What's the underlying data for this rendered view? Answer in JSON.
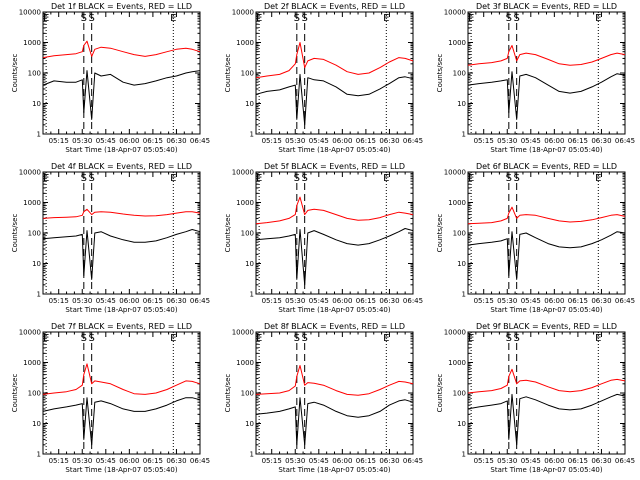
{
  "figure": {
    "background": "#ffffff",
    "axis_color": "#000000"
  },
  "chart_data": {
    "type": "line",
    "layout": "3x3 grid of panels",
    "y_scale": "log",
    "ylim": [
      1,
      10000
    ],
    "xlim": [
      "05:05",
      "06:45"
    ],
    "ylabel": "Counts/sec",
    "xlabel": "Start Time (18-Apr-07 05:05:40)",
    "y_ticks": [
      "1",
      "10",
      "100",
      "1000",
      "10000"
    ],
    "x_ticks": [
      "05:15",
      "05:30",
      "05:45",
      "06:00",
      "06:15",
      "06:30",
      "06:45"
    ],
    "x_minor_per_major": 3,
    "series_style": [
      {
        "id": "events",
        "color": "#000000"
      },
      {
        "id": "lld",
        "color": "#ff0000"
      }
    ],
    "markers": [
      {
        "label": "E",
        "time": "05:07",
        "line": "dotted"
      },
      {
        "label": "S",
        "time": "05:31",
        "line": "dashed"
      },
      {
        "label": "S",
        "time": "05:36",
        "line": "dashed"
      },
      {
        "label": "E",
        "time": "06:28",
        "line": "dotted"
      }
    ],
    "panels": [
      {
        "title": "Det 1f BLACK = Events, RED = LLD",
        "events": {
          "time": [
            "05:05",
            "05:12",
            "05:20",
            "05:26",
            "05:30",
            "05:31",
            "05:33",
            "05:36",
            "05:38",
            "05:42",
            "05:48",
            "05:56",
            "06:03",
            "06:10",
            "06:17",
            "06:24",
            "06:30",
            "06:36",
            "06:40",
            "06:45"
          ],
          "value": [
            40,
            55,
            50,
            50,
            60,
            5,
            120,
            3,
            100,
            80,
            90,
            50,
            40,
            45,
            55,
            70,
            80,
            100,
            110,
            120
          ]
        },
        "lld": {
          "time": [
            "05:05",
            "05:12",
            "05:20",
            "05:26",
            "05:30",
            "05:31",
            "05:33",
            "05:36",
            "05:38",
            "05:42",
            "05:48",
            "05:56",
            "06:03",
            "06:10",
            "06:17",
            "06:24",
            "06:30",
            "06:36",
            "06:40",
            "06:45"
          ],
          "value": [
            320,
            370,
            400,
            430,
            500,
            800,
            1100,
            350,
            600,
            700,
            650,
            500,
            400,
            350,
            400,
            500,
            600,
            650,
            600,
            500
          ]
        }
      },
      {
        "title": "Det 2f BLACK = Events, RED = LLD",
        "events": {
          "time": [
            "05:05",
            "05:12",
            "05:20",
            "05:26",
            "05:30",
            "05:31",
            "05:33",
            "05:36",
            "05:38",
            "05:42",
            "05:48",
            "05:56",
            "06:03",
            "06:10",
            "06:17",
            "06:24",
            "06:30",
            "06:36",
            "06:40",
            "06:45"
          ],
          "value": [
            20,
            25,
            28,
            35,
            40,
            3,
            90,
            2,
            70,
            60,
            55,
            35,
            20,
            18,
            20,
            30,
            45,
            70,
            75,
            65
          ]
        },
        "lld": {
          "time": [
            "05:05",
            "05:12",
            "05:20",
            "05:26",
            "05:30",
            "05:31",
            "05:33",
            "05:36",
            "05:38",
            "05:42",
            "05:48",
            "05:56",
            "06:03",
            "06:10",
            "06:17",
            "06:24",
            "06:30",
            "06:36",
            "06:40",
            "06:45"
          ],
          "value": [
            70,
            80,
            90,
            120,
            200,
            400,
            1000,
            150,
            250,
            300,
            280,
            180,
            110,
            90,
            100,
            150,
            230,
            320,
            300,
            250
          ]
        }
      },
      {
        "title": "Det 3f BLACK = Events, RED = LLD",
        "events": {
          "time": [
            "05:05",
            "05:12",
            "05:20",
            "05:26",
            "05:30",
            "05:31",
            "05:33",
            "05:36",
            "05:38",
            "05:42",
            "05:48",
            "05:56",
            "06:03",
            "06:10",
            "06:17",
            "06:24",
            "06:30",
            "06:36",
            "06:40",
            "06:45"
          ],
          "value": [
            40,
            45,
            50,
            55,
            60,
            5,
            110,
            3,
            80,
            90,
            70,
            40,
            25,
            22,
            25,
            35,
            50,
            75,
            95,
            85
          ]
        },
        "lld": {
          "time": [
            "05:05",
            "05:12",
            "05:20",
            "05:26",
            "05:30",
            "05:31",
            "05:33",
            "05:36",
            "05:38",
            "05:42",
            "05:48",
            "05:56",
            "06:03",
            "06:10",
            "06:17",
            "06:24",
            "06:30",
            "06:36",
            "06:40",
            "06:45"
          ],
          "value": [
            180,
            200,
            220,
            250,
            300,
            500,
            800,
            250,
            400,
            450,
            400,
            280,
            200,
            180,
            190,
            230,
            300,
            400,
            450,
            400
          ]
        }
      },
      {
        "title": "Det 4f BLACK = Events, RED = LLD",
        "events": {
          "time": [
            "05:05",
            "05:12",
            "05:20",
            "05:26",
            "05:30",
            "05:31",
            "05:33",
            "05:36",
            "05:38",
            "05:42",
            "05:48",
            "05:56",
            "06:03",
            "06:10",
            "06:17",
            "06:24",
            "06:30",
            "06:36",
            "06:40",
            "06:45"
          ],
          "value": [
            65,
            70,
            75,
            80,
            90,
            4,
            120,
            3,
            100,
            110,
            80,
            60,
            50,
            50,
            55,
            70,
            90,
            110,
            130,
            110
          ]
        },
        "lld": {
          "time": [
            "05:05",
            "05:12",
            "05:20",
            "05:26",
            "05:30",
            "05:31",
            "05:33",
            "05:36",
            "05:38",
            "05:42",
            "05:48",
            "05:56",
            "06:03",
            "06:10",
            "06:17",
            "06:24",
            "06:30",
            "06:36",
            "06:40",
            "06:45"
          ],
          "value": [
            300,
            320,
            330,
            340,
            380,
            500,
            600,
            400,
            480,
            500,
            480,
            420,
            380,
            360,
            370,
            400,
            450,
            500,
            500,
            450
          ]
        }
      },
      {
        "title": "Det 5f BLACK = Events, RED = LLD",
        "events": {
          "time": [
            "05:05",
            "05:12",
            "05:20",
            "05:26",
            "05:30",
            "05:31",
            "05:33",
            "05:36",
            "05:38",
            "05:42",
            "05:48",
            "05:56",
            "06:03",
            "06:10",
            "06:17",
            "06:24",
            "06:30",
            "06:36",
            "06:40",
            "06:45"
          ],
          "value": [
            60,
            65,
            70,
            80,
            90,
            3,
            130,
            2,
            100,
            120,
            90,
            60,
            45,
            40,
            45,
            60,
            80,
            110,
            140,
            120
          ]
        },
        "lld": {
          "time": [
            "05:05",
            "05:12",
            "05:20",
            "05:26",
            "05:30",
            "05:31",
            "05:33",
            "05:36",
            "05:38",
            "05:42",
            "05:48",
            "05:56",
            "06:03",
            "06:10",
            "06:17",
            "06:24",
            "06:30",
            "06:36",
            "06:40",
            "06:45"
          ],
          "value": [
            200,
            220,
            250,
            300,
            400,
            800,
            1500,
            400,
            550,
            600,
            550,
            400,
            300,
            260,
            270,
            320,
            400,
            480,
            450,
            400
          ]
        }
      },
      {
        "title": "Det 6f BLACK = Events, RED = LLD",
        "events": {
          "time": [
            "05:05",
            "05:12",
            "05:20",
            "05:26",
            "05:30",
            "05:31",
            "05:33",
            "05:36",
            "05:38",
            "05:42",
            "05:48",
            "05:56",
            "06:03",
            "06:10",
            "06:17",
            "06:24",
            "06:30",
            "06:36",
            "06:40",
            "06:45"
          ],
          "value": [
            40,
            45,
            50,
            55,
            65,
            4,
            110,
            3,
            90,
            100,
            70,
            45,
            35,
            33,
            35,
            45,
            60,
            85,
            110,
            100
          ]
        },
        "lld": {
          "time": [
            "05:05",
            "05:12",
            "05:20",
            "05:26",
            "05:30",
            "05:31",
            "05:33",
            "05:36",
            "05:38",
            "05:42",
            "05:48",
            "05:56",
            "06:03",
            "06:10",
            "06:17",
            "06:24",
            "06:30",
            "06:36",
            "06:40",
            "06:45"
          ],
          "value": [
            200,
            210,
            220,
            250,
            300,
            450,
            700,
            300,
            380,
            400,
            380,
            300,
            250,
            230,
            240,
            270,
            320,
            380,
            400,
            350
          ]
        }
      },
      {
        "title": "Det 7f BLACK = Events, RED = LLD",
        "events": {
          "time": [
            "05:05",
            "05:12",
            "05:20",
            "05:26",
            "05:30",
            "05:31",
            "05:33",
            "05:36",
            "05:38",
            "05:42",
            "05:48",
            "05:56",
            "06:03",
            "06:10",
            "06:17",
            "06:24",
            "06:30",
            "06:36",
            "06:40",
            "06:45"
          ],
          "value": [
            25,
            30,
            35,
            40,
            45,
            3,
            70,
            2,
            50,
            55,
            45,
            30,
            25,
            25,
            30,
            40,
            55,
            70,
            70,
            60
          ]
        },
        "lld": {
          "time": [
            "05:05",
            "05:12",
            "05:20",
            "05:26",
            "05:30",
            "05:31",
            "05:33",
            "05:36",
            "05:38",
            "05:42",
            "05:48",
            "05:56",
            "06:03",
            "06:10",
            "06:17",
            "06:24",
            "06:30",
            "06:36",
            "06:40",
            "06:45"
          ],
          "value": [
            90,
            100,
            110,
            130,
            180,
            400,
            900,
            200,
            250,
            230,
            200,
            130,
            95,
            90,
            100,
            130,
            180,
            250,
            240,
            200
          ]
        }
      },
      {
        "title": "Det 8f BLACK = Events, RED = LLD",
        "events": {
          "time": [
            "05:05",
            "05:12",
            "05:20",
            "05:26",
            "05:30",
            "05:31",
            "05:33",
            "05:36",
            "05:38",
            "05:42",
            "05:48",
            "05:56",
            "06:03",
            "06:10",
            "06:17",
            "06:24",
            "06:30",
            "06:36",
            "06:40",
            "06:45"
          ],
          "value": [
            20,
            22,
            25,
            30,
            35,
            2,
            70,
            2,
            45,
            50,
            40,
            25,
            18,
            16,
            18,
            25,
            40,
            55,
            60,
            50
          ]
        },
        "lld": {
          "time": [
            "05:05",
            "05:12",
            "05:20",
            "05:26",
            "05:30",
            "05:31",
            "05:33",
            "05:36",
            "05:38",
            "05:42",
            "05:48",
            "05:56",
            "06:03",
            "06:10",
            "06:17",
            "06:24",
            "06:30",
            "06:36",
            "06:40",
            "06:45"
          ],
          "value": [
            90,
            95,
            100,
            120,
            170,
            350,
            800,
            180,
            220,
            210,
            180,
            120,
            90,
            85,
            95,
            130,
            180,
            240,
            230,
            200
          ]
        }
      },
      {
        "title": "Det 9f BLACK = Events, RED = LLD",
        "events": {
          "time": [
            "05:05",
            "05:12",
            "05:20",
            "05:26",
            "05:30",
            "05:31",
            "05:33",
            "05:36",
            "05:38",
            "05:42",
            "05:48",
            "05:56",
            "06:03",
            "06:10",
            "06:17",
            "06:24",
            "06:30",
            "06:36",
            "06:40",
            "06:45"
          ],
          "value": [
            30,
            35,
            40,
            45,
            55,
            3,
            90,
            2,
            65,
            75,
            60,
            40,
            30,
            28,
            30,
            40,
            55,
            75,
            90,
            80
          ]
        },
        "lld": {
          "time": [
            "05:05",
            "05:12",
            "05:20",
            "05:26",
            "05:30",
            "05:31",
            "05:33",
            "05:36",
            "05:38",
            "05:42",
            "05:48",
            "05:56",
            "06:03",
            "06:10",
            "06:17",
            "06:24",
            "06:30",
            "06:36",
            "06:40",
            "06:45"
          ],
          "value": [
            100,
            110,
            120,
            140,
            180,
            350,
            600,
            200,
            250,
            260,
            230,
            160,
            120,
            110,
            120,
            150,
            200,
            260,
            280,
            250
          ]
        }
      }
    ]
  }
}
